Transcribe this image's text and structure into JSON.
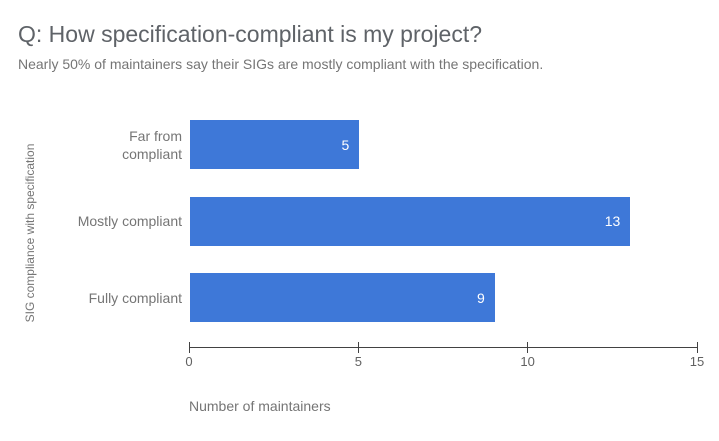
{
  "chart_data": {
    "type": "bar",
    "orientation": "horizontal",
    "title": "Q: How specification-compliant is my project?",
    "subtitle": "Nearly 50% of maintainers say their SIGs are mostly compliant with the specification.",
    "categories": [
      "Far from compliant",
      "Mostly compliant",
      "Fully compliant"
    ],
    "values": [
      5,
      13,
      9
    ],
    "display_labels": [
      "Far from\ncompliant",
      "Mostly compliant",
      "Fully compliant"
    ],
    "xlabel": "Number of maintainers",
    "ylabel": "SIG compliance with specification",
    "xlim": [
      0,
      15
    ],
    "x_ticks": [
      0,
      5,
      10,
      15
    ],
    "grid": false,
    "legend": "none",
    "bar_color": "#3e78d8",
    "value_label_color": "#ffffff",
    "background_color": "#ffffff"
  }
}
